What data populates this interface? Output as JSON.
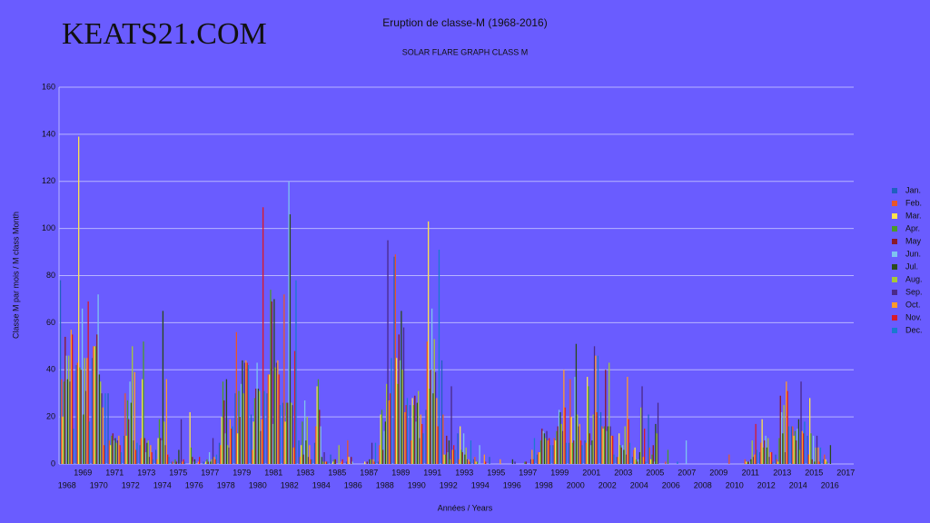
{
  "brand": "KEATS21.COM",
  "chart_data": {
    "type": "bar",
    "title": "Eruption de classe-M (1968-2016)",
    "subtitle": "SOLAR FLARE GRAPH CLASS M",
    "x_label": "Années / Years",
    "y_label": "Classe M par mois / M class Month",
    "ylim": [
      0,
      160
    ],
    "yticks": [
      0,
      20,
      40,
      60,
      80,
      100,
      120,
      140,
      160
    ],
    "grid": true,
    "legend": "right",
    "categories": [
      "1968",
      "1969",
      "1970",
      "1971",
      "1972",
      "1973",
      "1974",
      "1975",
      "1976",
      "1977",
      "1978",
      "1979",
      "1980",
      "1981",
      "1982",
      "1983",
      "1984",
      "1985",
      "1986",
      "1987",
      "1988",
      "1989",
      "1990",
      "1991",
      "1992",
      "1993",
      "1994",
      "1995",
      "1996",
      "1997",
      "1998",
      "1999",
      "2000",
      "2001",
      "2002",
      "2003",
      "2004",
      "2005",
      "2006",
      "2007",
      "2008",
      "2009",
      "2010",
      "2011",
      "2012",
      "2013",
      "2014",
      "2015",
      "2016",
      "2017"
    ],
    "series": [
      {
        "name": "Jan.",
        "color": "#2060c0",
        "values": [
          78,
          42,
          45,
          30,
          12,
          8,
          6,
          1,
          0,
          1,
          9,
          30,
          21,
          30,
          26,
          10,
          9,
          4,
          1,
          0,
          1,
          88,
          25,
          23,
          44,
          13,
          2,
          3,
          0,
          0,
          4,
          8,
          9,
          10,
          22,
          3,
          3,
          21,
          0,
          0,
          0,
          0,
          0,
          0,
          5,
          4,
          16,
          12,
          2,
          null
        ]
      },
      {
        "name": "Feb.",
        "color": "#e8562a",
        "values": [
          36,
          43,
          50,
          10,
          30,
          11,
          2,
          1,
          0,
          0,
          8,
          56,
          6,
          38,
          72,
          3,
          16,
          0,
          10,
          0,
          8,
          89,
          10,
          52,
          21,
          2,
          3,
          0,
          0,
          0,
          5,
          11,
          36,
          9,
          16,
          3,
          6,
          7,
          1,
          0,
          0,
          0,
          4,
          2,
          9,
          2,
          16,
          4,
          4,
          null
        ]
      },
      {
        "name": "Mar.",
        "color": "#ffe34d",
        "values": [
          20,
          139,
          50,
          8,
          12,
          36,
          11,
          0,
          22,
          1,
          20,
          13,
          18,
          38,
          18,
          8,
          33,
          1,
          3,
          1,
          21,
          45,
          28,
          103,
          4,
          16,
          1,
          0,
          0,
          0,
          5,
          10,
          20,
          37,
          15,
          13,
          7,
          2,
          0,
          0,
          0,
          0,
          0,
          1,
          19,
          1,
          12,
          28,
          2,
          null
        ]
      },
      {
        "name": "Apr.",
        "color": "#4a9a2a",
        "values": [
          35,
          41,
          50,
          12,
          27,
          52,
          19,
          2,
          7,
          2,
          35,
          31,
          28,
          74,
          26,
          18,
          36,
          2,
          0,
          0,
          23,
          34,
          25,
          32,
          4,
          6,
          1,
          0,
          0,
          1,
          10,
          14,
          9,
          33,
          16,
          8,
          2,
          4,
          6,
          0,
          0,
          0,
          0,
          1,
          7,
          11,
          14,
          13,
          1,
          null
        ]
      },
      {
        "name": "May",
        "color": "#8b1a2a",
        "values": [
          54,
          40,
          55,
          13,
          19,
          11,
          11,
          1,
          3,
          1,
          27,
          20,
          32,
          69,
          26,
          4,
          23,
          2,
          3,
          1,
          6,
          55,
          29,
          40,
          12,
          5,
          0,
          0,
          0,
          1,
          15,
          16,
          10,
          13,
          40,
          7,
          1,
          8,
          0,
          0,
          0,
          0,
          0,
          1,
          10,
          29,
          10,
          2,
          0,
          null
        ]
      },
      {
        "name": "Jun.",
        "color": "#7ec3f0",
        "values": [
          46,
          66,
          72,
          10,
          35,
          5,
          10,
          0,
          1,
          5,
          13,
          34,
          43,
          17,
          120,
          27,
          16,
          0,
          1,
          0,
          14,
          44,
          18,
          66,
          5,
          13,
          8,
          0,
          0,
          0,
          14,
          23,
          37,
          8,
          14,
          8,
          2,
          1,
          0,
          10,
          0,
          0,
          0,
          1,
          12,
          22,
          15,
          12,
          0,
          null
        ]
      },
      {
        "name": "Jul.",
        "color": "#2a4a1a",
        "values": [
          36,
          21,
          38,
          11,
          26,
          9,
          65,
          6,
          2,
          1,
          36,
          44,
          32,
          70,
          106,
          10,
          3,
          0,
          0,
          2,
          18,
          65,
          26,
          30,
          10,
          4,
          0,
          0,
          2,
          0,
          13,
          22,
          51,
          10,
          16,
          6,
          5,
          17,
          0,
          0,
          0,
          0,
          0,
          2,
          7,
          13,
          19,
          1,
          8,
          null
        ]
      },
      {
        "name": "Aug.",
        "color": "#a6c838",
        "values": [
          46,
          45,
          35,
          9,
          50,
          10,
          18,
          0,
          0,
          2,
          8,
          30,
          31,
          41,
          26,
          20,
          1,
          8,
          0,
          2,
          34,
          40,
          31,
          53,
          2,
          7,
          0,
          0,
          0,
          0,
          11,
          17,
          21,
          21,
          43,
          16,
          24,
          13,
          0,
          0,
          0,
          0,
          0,
          10,
          11,
          25,
          6,
          7,
          0,
          null
        ]
      },
      {
        "name": "Sep.",
        "color": "#4a2a8a",
        "values": [
          35,
          31,
          30,
          10,
          10,
          3,
          8,
          19,
          0,
          11,
          7,
          43,
          14,
          43,
          25,
          3,
          5,
          0,
          0,
          9,
          95,
          58,
          11,
          39,
          33,
          2,
          0,
          0,
          1,
          2,
          14,
          14,
          16,
          50,
          16,
          4,
          33,
          26,
          0,
          0,
          0,
          0,
          0,
          3,
          3,
          5,
          35,
          12,
          0,
          null
        ]
      },
      {
        "name": "Oct.",
        "color": "#ff9a2a",
        "values": [
          57,
          45,
          24,
          12,
          39,
          8,
          36,
          1,
          1,
          3,
          19,
          44,
          19,
          44,
          7,
          8,
          1,
          1,
          0,
          2,
          27,
          22,
          21,
          28,
          6,
          2,
          4,
          2,
          0,
          6,
          10,
          40,
          17,
          46,
          12,
          37,
          3,
          0,
          0,
          0,
          0,
          0,
          0,
          4,
          5,
          35,
          14,
          7,
          0,
          null
        ]
      },
      {
        "name": "Nov.",
        "color": "#d81a2a",
        "values": [
          55,
          69,
          8,
          8,
          6,
          5,
          4,
          2,
          3,
          2,
          15,
          43,
          109,
          38,
          48,
          2,
          1,
          2,
          0,
          1,
          30,
          25,
          17,
          16,
          8,
          1,
          1,
          0,
          0,
          2,
          11,
          24,
          10,
          22,
          12,
          19,
          15,
          0,
          0,
          0,
          0,
          0,
          0,
          17,
          5,
          31,
          13,
          1,
          0,
          null
        ]
      },
      {
        "name": "Dec.",
        "color": "#1a7ad0",
        "values": [
          15,
          18,
          30,
          5,
          9,
          2,
          3,
          1,
          0,
          4,
          16,
          42,
          31,
          25,
          78,
          2,
          1,
          0,
          0,
          9,
          45,
          28,
          13,
          91,
          6,
          10,
          0,
          0,
          0,
          11,
          8,
          9,
          8,
          46,
          4,
          9,
          1,
          0,
          1,
          0,
          0,
          0,
          0,
          6,
          1,
          16,
          18,
          7,
          0,
          null
        ]
      }
    ]
  }
}
